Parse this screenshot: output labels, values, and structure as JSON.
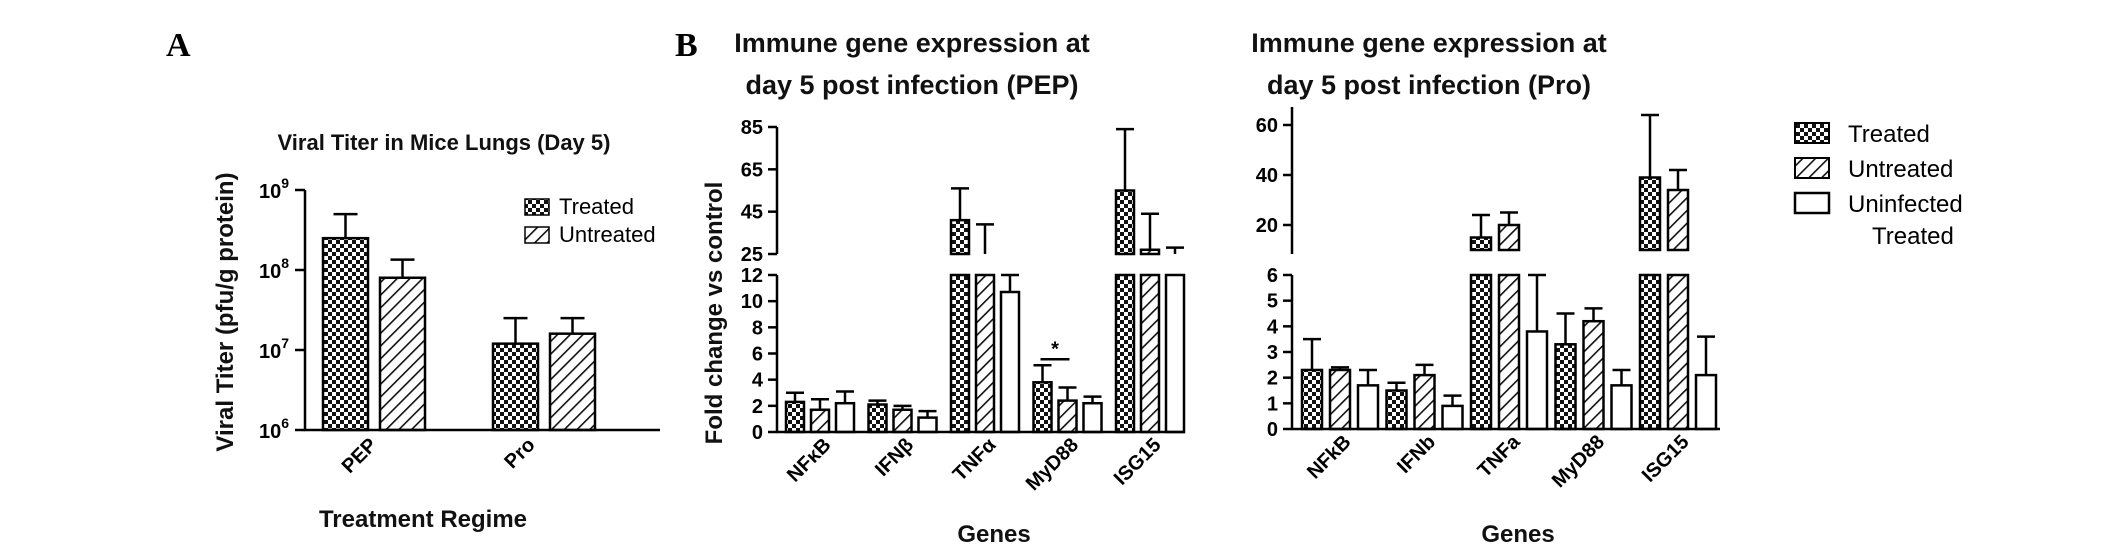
{
  "panel_labels": [
    "A",
    "B"
  ],
  "chart_data": [
    {
      "id": "A",
      "type": "bar",
      "title": "Viral Titer in Mice Lungs (Day 5)",
      "xlabel": "Treatment Regime",
      "ylabel": "Viral Titer (pfu/g protein)",
      "y_scale": "log",
      "ylim": [
        1000000,
        1000000000
      ],
      "yticks": [
        1000000,
        10000000,
        100000000,
        1000000000
      ],
      "yticklabels": [
        {
          "base": "10",
          "exp": "6"
        },
        {
          "base": "10",
          "exp": "7"
        },
        {
          "base": "10",
          "exp": "8"
        },
        {
          "base": "10",
          "exp": "9"
        }
      ],
      "categories": [
        "PEP",
        "Pro"
      ],
      "series": [
        {
          "name": "Treated",
          "pattern": "checker",
          "values": [
            250000000,
            12000000
          ],
          "errors_upper": [
            500000000,
            25000000
          ]
        },
        {
          "name": "Untreated",
          "pattern": "hatch",
          "values": [
            80000000,
            16000000
          ],
          "errors_upper": [
            135000000,
            25000000
          ]
        }
      ],
      "legend": "top-right"
    },
    {
      "id": "B-PEP",
      "type": "bar",
      "title_lines": [
        "Immune gene expression at",
        "day 5 post infection (PEP)"
      ],
      "xlabel": "Genes",
      "ylabel": "Fold change vs control",
      "broken_axis": true,
      "lower_ylim": [
        0,
        12
      ],
      "lower_yticks": [
        0,
        2,
        4,
        6,
        8,
        10,
        12
      ],
      "upper_ylim": [
        25,
        85
      ],
      "upper_yticks": [
        25,
        45,
        65,
        85
      ],
      "categories": [
        "NFκB",
        "IFNβ",
        "TNFα",
        "MyD88",
        "ISG15"
      ],
      "series": [
        {
          "name": "Treated",
          "pattern": "checker",
          "values": [
            2.3,
            2.1,
            41,
            3.8,
            55
          ],
          "errors_upper": [
            3.0,
            2.4,
            56,
            5.1,
            84
          ]
        },
        {
          "name": "Untreated",
          "pattern": "hatch",
          "values": [
            1.7,
            1.7,
            25,
            2.4,
            27
          ],
          "errors_upper": [
            2.5,
            2.0,
            39,
            3.4,
            44
          ]
        },
        {
          "name": "Uninfected Treated",
          "pattern": "open",
          "values": [
            2.2,
            1.1,
            10.7,
            2.2,
            25
          ],
          "errors_upper": [
            3.1,
            1.6,
            12,
            2.7,
            28
          ]
        }
      ],
      "annotations": [
        "*"
      ]
    },
    {
      "id": "B-Pro",
      "type": "bar",
      "title_lines": [
        "Immune gene expression at",
        "day 5 post infection (Pro)"
      ],
      "xlabel": "Genes",
      "broken_axis": true,
      "lower_ylim": [
        0,
        6
      ],
      "lower_yticks": [
        0,
        1,
        2,
        3,
        4,
        5,
        6
      ],
      "upper_ylim": [
        10,
        70
      ],
      "upper_yticks": [
        20,
        40,
        60
      ],
      "categories": [
        "NFkB",
        "IFNb",
        "TNFa",
        "MyD88",
        "ISG15"
      ],
      "series": [
        {
          "name": "Treated",
          "pattern": "checker",
          "values": [
            2.3,
            1.5,
            15,
            3.3,
            39
          ],
          "errors_upper": [
            3.5,
            1.8,
            24,
            4.5,
            64
          ]
        },
        {
          "name": "Untreated",
          "pattern": "hatch",
          "values": [
            2.3,
            2.1,
            20,
            4.2,
            34
          ],
          "errors_upper": [
            2.4,
            2.5,
            25,
            4.7,
            42
          ]
        },
        {
          "name": "Uninfected Treated",
          "pattern": "open",
          "values": [
            1.7,
            0.9,
            3.8,
            1.7,
            2.1
          ],
          "errors_upper": [
            2.3,
            1.3,
            6.0,
            2.3,
            3.6
          ]
        }
      ],
      "legend": "right",
      "legend_labels": [
        "Treated",
        "Untreated",
        "Uninfected",
        "Treated"
      ]
    }
  ]
}
